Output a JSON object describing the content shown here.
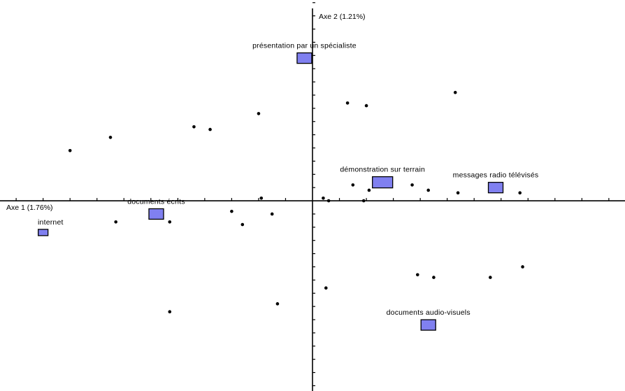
{
  "chart_data": {
    "type": "scatter",
    "title": "",
    "xlabel": "Axe 1 (1.76%)",
    "ylabel": "Axe 2 (1.21%)",
    "xlim": [
      -1.16,
      1.16
    ],
    "ylim": [
      -0.72,
      0.76
    ],
    "grid": false,
    "box_color": "#8080f0",
    "point_color": "#000000",
    "series": [
      {
        "name": "",
        "marker": "box",
        "points": [
          {
            "label": "internet",
            "x": -1.0,
            "y": -0.12,
            "size": "small"
          },
          {
            "label": "documents écrits",
            "x": -0.58,
            "y": -0.05,
            "size": "medium"
          },
          {
            "label": "présentation par un spécialiste",
            "x": -0.03,
            "y": 0.54,
            "size": "medium"
          },
          {
            "label": "démonstration sur terrain",
            "x": 0.26,
            "y": 0.07,
            "size": "large"
          },
          {
            "label": "messages radio télévisés",
            "x": 0.68,
            "y": 0.05,
            "size": "medium"
          },
          {
            "label": "documents audio-visuels",
            "x": 0.43,
            "y": -0.47,
            "size": "medium"
          }
        ]
      },
      {
        "name": "",
        "marker": "dot",
        "points": [
          {
            "x": -0.9,
            "y": 0.19
          },
          {
            "x": -0.75,
            "y": 0.24
          },
          {
            "x": -0.44,
            "y": 0.28
          },
          {
            "x": -0.38,
            "y": 0.27
          },
          {
            "x": -0.2,
            "y": 0.33
          },
          {
            "x": 0.13,
            "y": 0.37
          },
          {
            "x": 0.2,
            "y": 0.36
          },
          {
            "x": 0.53,
            "y": 0.41
          },
          {
            "x": 0.15,
            "y": 0.06
          },
          {
            "x": 0.21,
            "y": 0.04
          },
          {
            "x": 0.37,
            "y": 0.06
          },
          {
            "x": 0.43,
            "y": 0.04
          },
          {
            "x": 0.54,
            "y": 0.03
          },
          {
            "x": 0.77,
            "y": 0.03
          },
          {
            "x": 0.04,
            "y": 0.01
          },
          {
            "x": 0.06,
            "y": 0.0
          },
          {
            "x": 0.19,
            "y": 0.0
          },
          {
            "x": -0.19,
            "y": 0.01
          },
          {
            "x": -0.73,
            "y": -0.08
          },
          {
            "x": -0.53,
            "y": -0.08
          },
          {
            "x": -0.3,
            "y": -0.04
          },
          {
            "x": -0.26,
            "y": -0.09
          },
          {
            "x": -0.15,
            "y": -0.05
          },
          {
            "x": 0.39,
            "y": -0.28
          },
          {
            "x": 0.45,
            "y": -0.29
          },
          {
            "x": 0.66,
            "y": -0.29
          },
          {
            "x": 0.78,
            "y": -0.25
          },
          {
            "x": 0.05,
            "y": -0.33
          },
          {
            "x": -0.13,
            "y": -0.39
          },
          {
            "x": -0.53,
            "y": -0.42
          }
        ]
      }
    ]
  }
}
